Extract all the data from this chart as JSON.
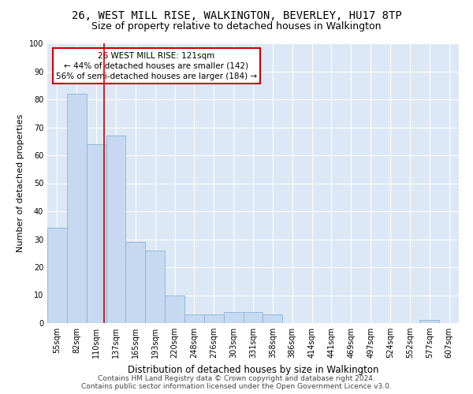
{
  "title": "26, WEST MILL RISE, WALKINGTON, BEVERLEY, HU17 8TP",
  "subtitle": "Size of property relative to detached houses in Walkington",
  "xlabel": "Distribution of detached houses by size in Walkington",
  "ylabel": "Number of detached properties",
  "bar_labels": [
    "55sqm",
    "82sqm",
    "110sqm",
    "137sqm",
    "165sqm",
    "193sqm",
    "220sqm",
    "248sqm",
    "276sqm",
    "303sqm",
    "331sqm",
    "358sqm",
    "386sqm",
    "414sqm",
    "441sqm",
    "469sqm",
    "497sqm",
    "524sqm",
    "552sqm",
    "577sqm",
    "607sqm"
  ],
  "bar_heights": [
    34,
    82,
    64,
    67,
    29,
    26,
    10,
    3,
    3,
    4,
    4,
    3,
    0,
    0,
    0,
    0,
    0,
    0,
    0,
    1,
    0
  ],
  "bar_color": "#c6d9f0",
  "bar_edge_color": "#8ab4d8",
  "property_line_x": 2.41,
  "property_line_color": "#cc0000",
  "annotation_line1": "26 WEST MILL RISE: 121sqm",
  "annotation_line2": "← 44% of detached houses are smaller (142)",
  "annotation_line3": "56% of semi-detached houses are larger (184) →",
  "annotation_box_color": "#ffffff",
  "annotation_box_edge_color": "#cc0000",
  "ylim": [
    0,
    100
  ],
  "yticks": [
    0,
    10,
    20,
    30,
    40,
    50,
    60,
    70,
    80,
    90,
    100
  ],
  "background_color": "#dce8f5",
  "grid_color": "#ffffff",
  "footer_line1": "Contains HM Land Registry data © Crown copyright and database right 2024.",
  "footer_line2": "Contains public sector information licensed under the Open Government Licence v3.0.",
  "title_fontsize": 10,
  "subtitle_fontsize": 9,
  "xlabel_fontsize": 8.5,
  "ylabel_fontsize": 8,
  "tick_fontsize": 7,
  "annotation_fontsize": 7.5,
  "footer_fontsize": 6.5
}
